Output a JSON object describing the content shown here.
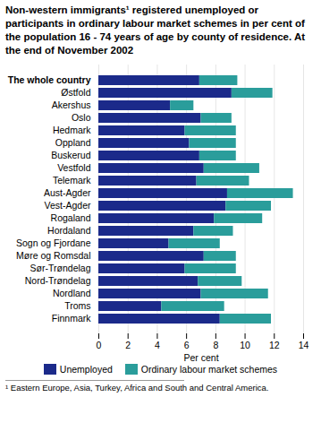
{
  "chart_data": {
    "type": "bar",
    "orientation": "horizontal",
    "stacked": true,
    "title": "Non-western immigrants¹ registered unemployed or participants in ordinary labour market schemes in per cent of the population 16 - 74 years of age by county of residence. At the end of November 2002",
    "footnote": "¹ Eastern Europe, Asia, Turkey, Africa and South and Central America.",
    "x_label": "Per cent",
    "categories": [
      "The whole country",
      "Østfold",
      "Akershus",
      "Oslo",
      "Hedmark",
      "Oppland",
      "Buskerud",
      "Vestfold",
      "Telemark",
      "Aust-Agder",
      "Vest-Agder",
      "Rogaland",
      "Hordaland",
      "Sogn og Fjordane",
      "Møre og Romsdal",
      "Sør-Trøndelag",
      "Nord-Trøndelag",
      "Nordland",
      "Troms",
      "Finnmark"
    ],
    "series": [
      {
        "name": "Unemployed",
        "color": "#1b2a8a",
        "values": [
          6.9,
          9.1,
          4.9,
          7.0,
          5.9,
          6.2,
          6.9,
          7.2,
          6.7,
          8.8,
          8.7,
          7.9,
          6.5,
          4.8,
          7.2,
          5.9,
          6.8,
          7.0,
          4.3,
          8.3
        ]
      },
      {
        "name": "Ordinary labour market schemes",
        "color": "#2a9d9b",
        "values": [
          2.6,
          2.8,
          1.6,
          2.1,
          3.5,
          3.2,
          2.5,
          3.8,
          3.6,
          4.5,
          3.1,
          3.3,
          2.7,
          3.5,
          2.2,
          3.5,
          3.0,
          4.6,
          4.3,
          3.5
        ]
      }
    ],
    "xlim": [
      0,
      14
    ],
    "xticks": [
      0,
      2,
      4,
      6,
      8,
      10,
      12,
      14
    ],
    "grid": true,
    "legend": "bottom"
  }
}
